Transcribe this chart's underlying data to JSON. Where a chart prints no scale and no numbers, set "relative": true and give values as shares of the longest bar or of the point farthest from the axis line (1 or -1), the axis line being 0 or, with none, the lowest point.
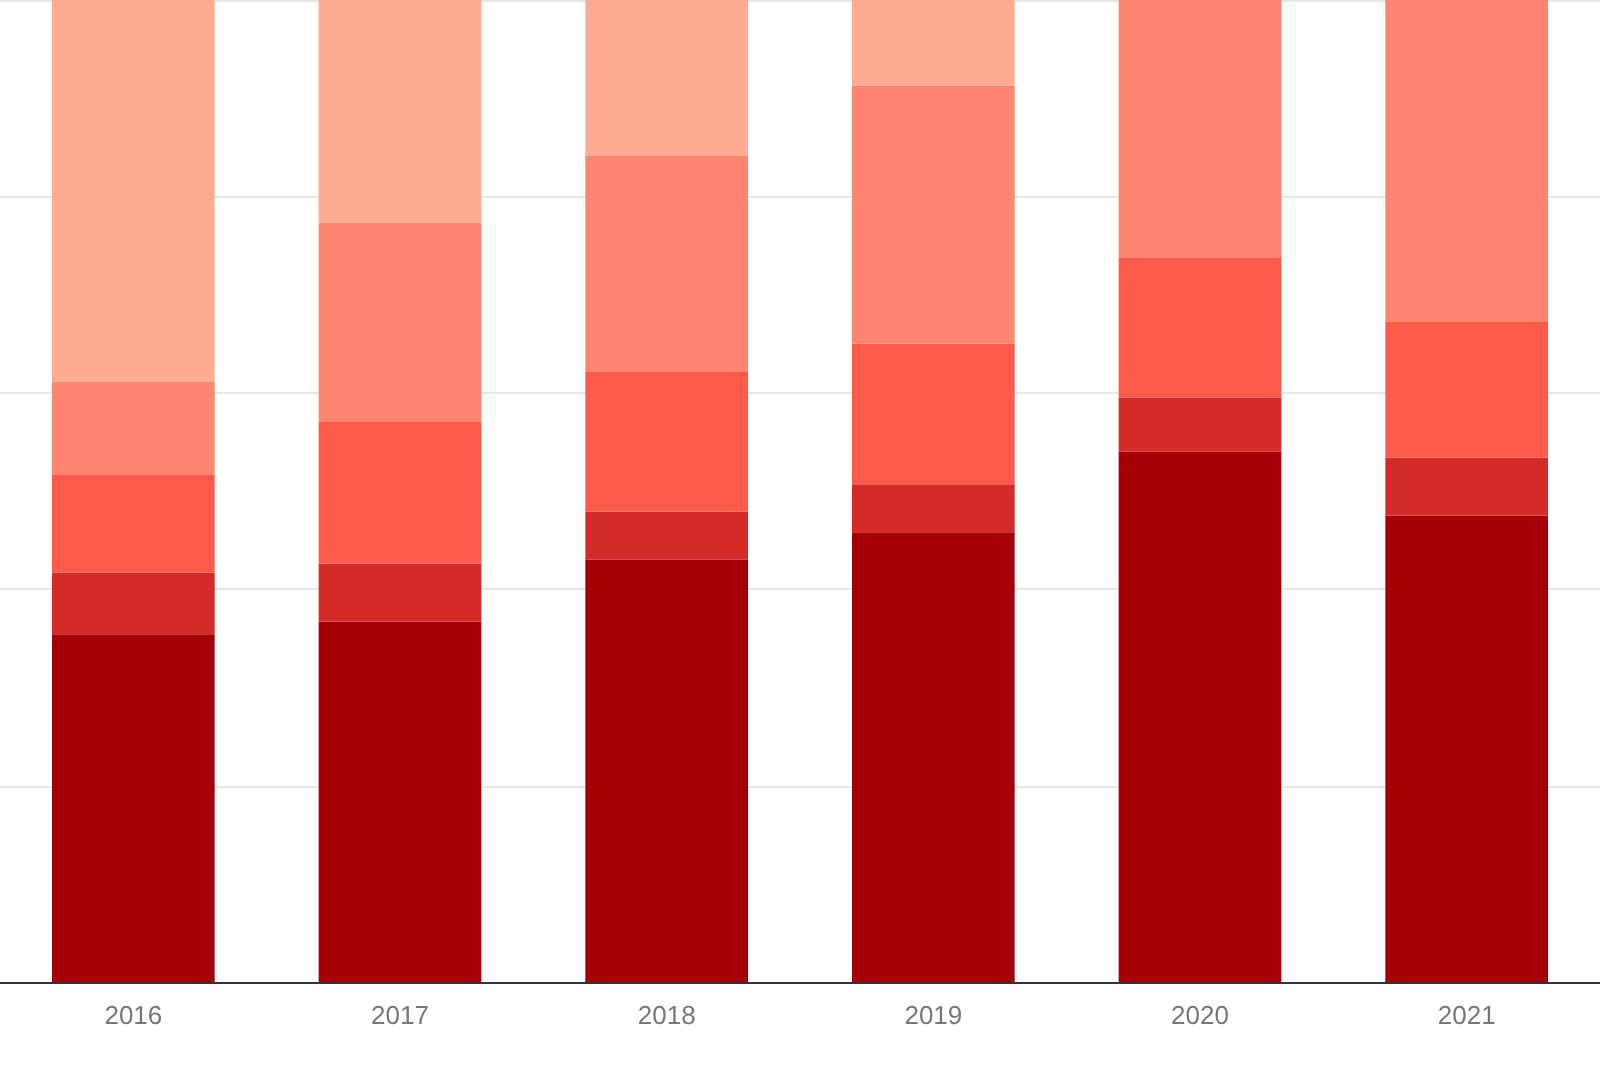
{
  "chart_data": {
    "type": "bar",
    "stacked": true,
    "relative": true,
    "grid": "y",
    "categories": [
      "2016",
      "2017",
      "2018",
      "2019",
      "2020",
      "2021"
    ],
    "series": [
      {
        "color": "#a50007",
        "values": [
          0.354,
          0.367,
          0.43,
          0.458,
          0.54,
          0.475
        ]
      },
      {
        "color": "#d42a2a",
        "values": [
          0.063,
          0.059,
          0.049,
          0.049,
          0.055,
          0.059
        ]
      },
      {
        "color": "#fe5a4b",
        "values": [
          0.1,
          0.145,
          0.143,
          0.143,
          0.143,
          0.138
        ]
      },
      {
        "color": "#fe8570",
        "values": [
          0.094,
          0.202,
          0.22,
          0.263,
          0.262,
          0.328
        ]
      },
      {
        "color": "#feac90",
        "values": [
          0.389,
          0.227,
          0.158,
          0.087,
          0,
          0
        ]
      }
    ]
  }
}
